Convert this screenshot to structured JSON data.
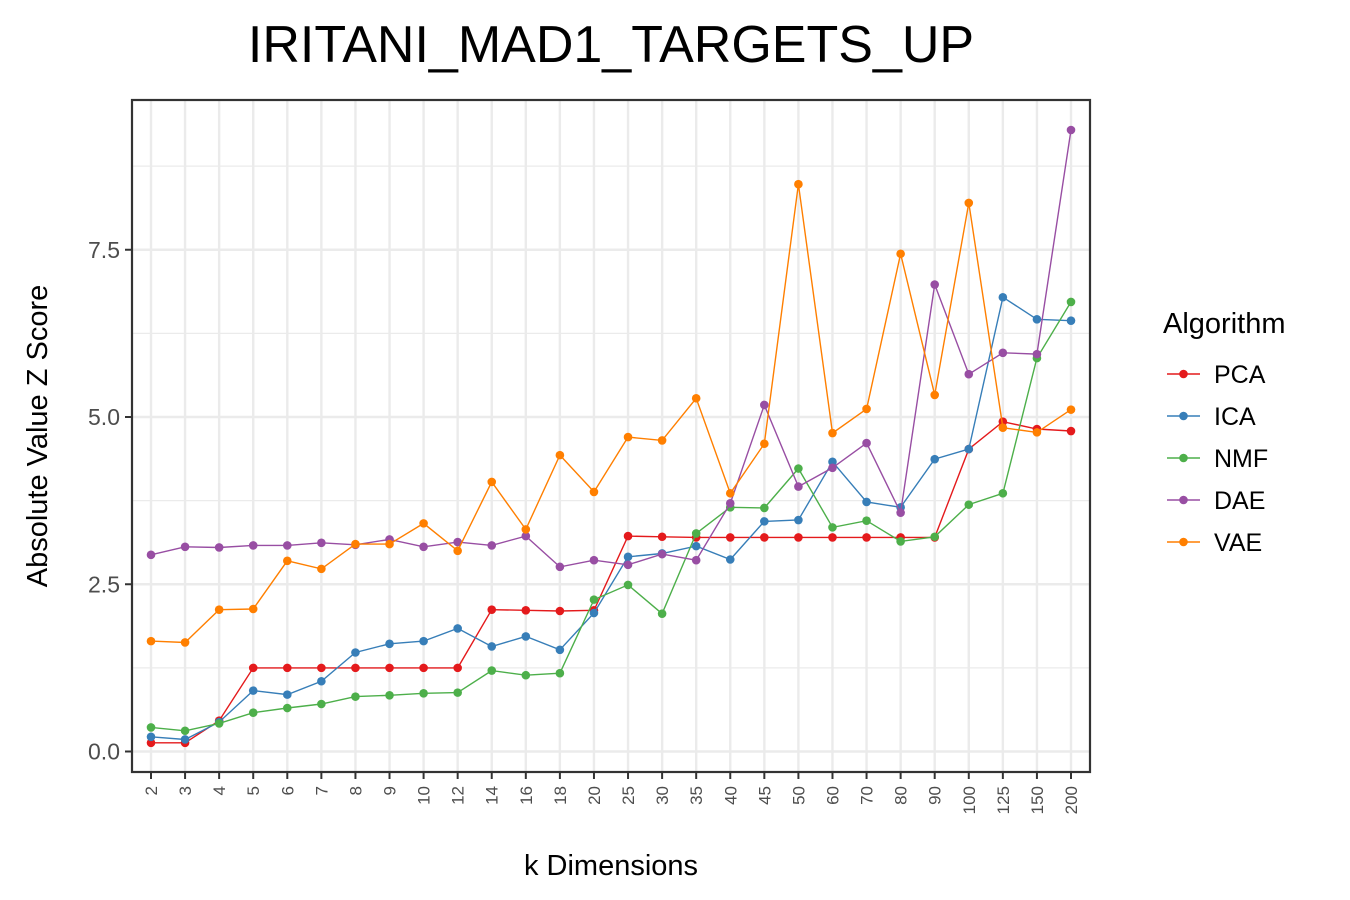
{
  "chart_data": {
    "type": "line",
    "title": "IRITANI_MAD1_TARGETS_UP",
    "xlabel": "k Dimensions",
    "ylabel": "Absolute Value Z Score",
    "categories": [
      "2",
      "3",
      "4",
      "5",
      "6",
      "7",
      "8",
      "9",
      "10",
      "12",
      "14",
      "16",
      "18",
      "20",
      "25",
      "30",
      "35",
      "40",
      "45",
      "50",
      "60",
      "70",
      "80",
      "90",
      "100",
      "125",
      "150",
      "200"
    ],
    "yticks": [
      0.0,
      2.5,
      5.0,
      7.5
    ],
    "ytick_labels": [
      "0.0",
      "2.5",
      "5.0",
      "7.5"
    ],
    "ylim": [
      -0.3,
      9.7
    ],
    "grid": true,
    "legend": {
      "title": "Algorithm",
      "position": "right"
    },
    "series": [
      {
        "name": "PCA",
        "color": "#e41a1c",
        "values": [
          0.13,
          0.13,
          0.46,
          1.25,
          1.25,
          1.25,
          1.25,
          1.25,
          1.25,
          1.25,
          2.12,
          2.11,
          2.1,
          2.11,
          3.22,
          3.21,
          3.2,
          3.2,
          3.2,
          3.2,
          3.2,
          3.2,
          3.2,
          3.2,
          4.52,
          4.93,
          4.82,
          4.79
        ]
      },
      {
        "name": "ICA",
        "color": "#377eb8",
        "values": [
          0.22,
          0.18,
          0.44,
          0.91,
          0.85,
          1.05,
          1.48,
          1.61,
          1.65,
          1.84,
          1.57,
          1.72,
          1.52,
          2.07,
          2.91,
          2.96,
          3.07,
          2.87,
          3.44,
          3.46,
          4.33,
          3.73,
          3.65,
          4.37,
          4.52,
          6.79,
          6.46,
          6.44
        ]
      },
      {
        "name": "NMF",
        "color": "#4daf4a",
        "values": [
          0.36,
          0.31,
          0.42,
          0.58,
          0.65,
          0.71,
          0.82,
          0.84,
          0.87,
          0.88,
          1.21,
          1.14,
          1.17,
          2.27,
          2.49,
          2.06,
          3.26,
          3.65,
          3.64,
          4.23,
          3.35,
          3.45,
          3.14,
          3.21,
          3.69,
          3.86,
          5.88,
          6.72
        ]
      },
      {
        "name": "DAE",
        "color": "#984ea3",
        "values": [
          2.94,
          3.06,
          3.05,
          3.08,
          3.08,
          3.12,
          3.09,
          3.17,
          3.06,
          3.13,
          3.08,
          3.22,
          2.76,
          2.86,
          2.79,
          2.95,
          2.86,
          3.71,
          5.18,
          3.96,
          4.24,
          4.61,
          3.57,
          6.98,
          5.64,
          5.96,
          5.94,
          9.29
        ]
      },
      {
        "name": "VAE",
        "color": "#ff7f00",
        "values": [
          1.65,
          1.63,
          2.12,
          2.13,
          2.85,
          2.73,
          3.1,
          3.1,
          3.41,
          3.0,
          4.03,
          3.32,
          4.43,
          3.88,
          4.7,
          4.65,
          5.28,
          3.86,
          4.6,
          8.48,
          4.76,
          5.12,
          7.44,
          5.33,
          8.2,
          4.84,
          4.77,
          5.11
        ]
      }
    ]
  }
}
